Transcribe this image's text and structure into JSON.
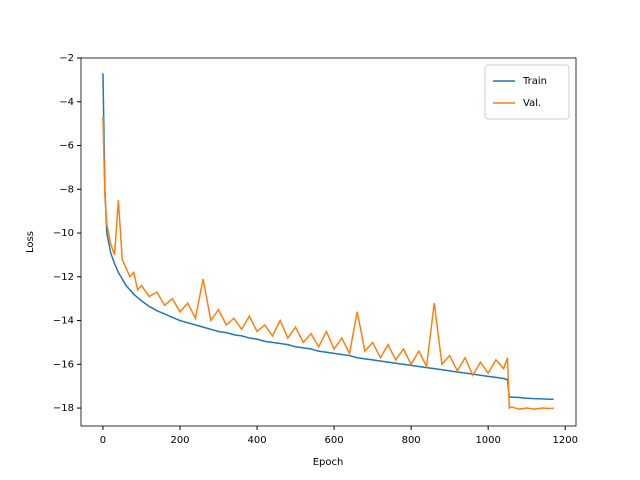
{
  "chart_data": {
    "type": "line",
    "xlabel": "Epoch",
    "ylabel": "Loss",
    "x": [
      0,
      5,
      10,
      20,
      30,
      40,
      50,
      60,
      70,
      80,
      90,
      100,
      120,
      140,
      160,
      180,
      200,
      220,
      240,
      260,
      280,
      300,
      320,
      340,
      360,
      380,
      400,
      420,
      440,
      460,
      480,
      500,
      520,
      540,
      560,
      580,
      600,
      620,
      640,
      660,
      680,
      700,
      720,
      740,
      760,
      780,
      800,
      820,
      840,
      860,
      880,
      900,
      920,
      940,
      960,
      980,
      1000,
      1020,
      1040,
      1050,
      1055,
      1060,
      1080,
      1100,
      1120,
      1140,
      1160,
      1170
    ],
    "series": [
      {
        "name": "Train",
        "color": "#1f77b4",
        "values": [
          -2.7,
          -8,
          -10,
          -10.9,
          -11.4,
          -11.8,
          -12.1,
          -12.4,
          -12.6,
          -12.8,
          -12.95,
          -13.1,
          -13.35,
          -13.55,
          -13.7,
          -13.85,
          -14.0,
          -14.1,
          -14.2,
          -14.3,
          -14.4,
          -14.5,
          -14.55,
          -14.65,
          -14.7,
          -14.8,
          -14.85,
          -14.95,
          -15.0,
          -15.05,
          -15.1,
          -15.2,
          -15.25,
          -15.3,
          -15.4,
          -15.45,
          -15.5,
          -15.55,
          -15.6,
          -15.7,
          -15.75,
          -15.8,
          -15.85,
          -15.9,
          -15.95,
          -16.0,
          -16.05,
          -16.1,
          -16.15,
          -16.2,
          -16.25,
          -16.3,
          -16.35,
          -16.4,
          -16.45,
          -16.5,
          -16.55,
          -16.6,
          -16.65,
          -16.7,
          -17.5,
          -17.5,
          -17.52,
          -17.55,
          -17.57,
          -17.58,
          -17.6,
          -17.6
        ]
      },
      {
        "name": "Val.",
        "color": "#ff7f0e",
        "values": [
          -4.7,
          -8.3,
          -9.6,
          -10.5,
          -11.0,
          -8.5,
          -11.2,
          -11.6,
          -12.0,
          -11.8,
          -12.6,
          -12.4,
          -12.9,
          -12.7,
          -13.3,
          -13.0,
          -13.6,
          -13.2,
          -13.9,
          -12.1,
          -14.0,
          -13.5,
          -14.2,
          -13.9,
          -14.4,
          -13.8,
          -14.5,
          -14.2,
          -14.7,
          -14.0,
          -14.8,
          -14.3,
          -15.0,
          -14.6,
          -15.2,
          -14.5,
          -15.3,
          -14.8,
          -15.5,
          -13.6,
          -15.4,
          -15.0,
          -15.7,
          -15.1,
          -15.8,
          -15.3,
          -16.0,
          -15.4,
          -16.1,
          -13.2,
          -16.0,
          -15.6,
          -16.3,
          -15.7,
          -16.5,
          -15.9,
          -16.4,
          -15.8,
          -16.2,
          -15.7,
          -18.0,
          -17.95,
          -18.05,
          -18.0,
          -18.05,
          -18.0,
          -18.02,
          -18.0
        ]
      }
    ],
    "xlim": [
      -57,
      1228
    ],
    "ylim": [
      -18.82,
      -2
    ],
    "xticks": [
      0,
      200,
      400,
      600,
      800,
      1000,
      1200
    ],
    "yticks": [
      {
        "value": -2,
        "label": "−2"
      },
      {
        "value": -4,
        "label": "−4"
      },
      {
        "value": -6,
        "label": "−6"
      },
      {
        "value": -8,
        "label": "−8"
      },
      {
        "value": -10,
        "label": "−10"
      },
      {
        "value": -12,
        "label": "−12"
      },
      {
        "value": -14,
        "label": "−14"
      },
      {
        "value": -16,
        "label": "−16"
      },
      {
        "value": -18,
        "label": "−18"
      }
    ],
    "legend": "upper right",
    "grid": false
  }
}
